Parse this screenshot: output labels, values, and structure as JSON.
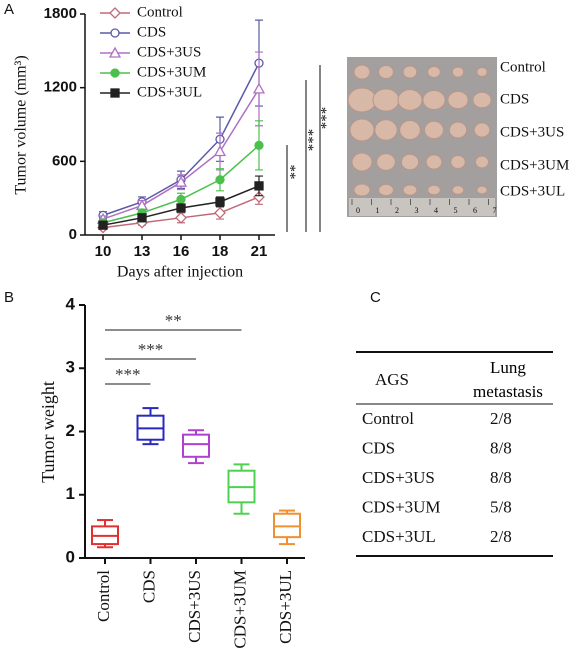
{
  "panels": [
    "A",
    "B",
    "C"
  ],
  "chart_data": [
    {
      "type": "line",
      "y_label": "Tumor volume (mm³)",
      "x_label": "Days after injection",
      "categories": [
        "10",
        "13",
        "16",
        "18",
        "21"
      ],
      "ylim": [
        0,
        1800
      ],
      "yticks": [
        0,
        600,
        1200,
        1800
      ],
      "legend": "upper left",
      "series": [
        {
          "name": "Control",
          "color": "#c06a78",
          "marker": "diamond-open",
          "values": [
            60,
            100,
            140,
            180,
            310
          ],
          "errors": [
            15,
            20,
            40,
            50,
            60
          ]
        },
        {
          "name": "CDS",
          "color": "#5a5aa8",
          "marker": "circle-open",
          "values": [
            160,
            270,
            450,
            780,
            1400
          ],
          "errors": [
            30,
            40,
            70,
            180,
            350
          ]
        },
        {
          "name": "CDS+3US",
          "color": "#b070c4",
          "marker": "triangle-open",
          "values": [
            130,
            240,
            430,
            680,
            1190
          ],
          "errors": [
            25,
            40,
            60,
            150,
            300
          ]
        },
        {
          "name": "CDS+3UM",
          "color": "#4cc04c",
          "marker": "circle",
          "values": [
            100,
            180,
            290,
            450,
            730
          ],
          "errors": [
            20,
            30,
            50,
            90,
            200
          ]
        },
        {
          "name": "CDS+3UL",
          "color": "#222222",
          "marker": "square",
          "values": [
            80,
            140,
            220,
            270,
            400
          ],
          "errors": [
            15,
            20,
            30,
            40,
            80
          ]
        }
      ],
      "annotations": [
        "**",
        "***",
        "***"
      ]
    },
    {
      "type": "box",
      "y_label": "Tumor weight",
      "categories": [
        "Control",
        "CDS",
        "CDS+3US",
        "CDS+3UM",
        "CDS+3UL"
      ],
      "ylim": [
        0,
        4
      ],
      "yticks": [
        0,
        1,
        2,
        3,
        4
      ],
      "colors": [
        "#e03030",
        "#2828c0",
        "#b040d0",
        "#50d050",
        "#f09030"
      ],
      "boxes": [
        {
          "min": 0.17,
          "q1": 0.22,
          "median": 0.35,
          "q3": 0.5,
          "max": 0.6
        },
        {
          "min": 1.8,
          "q1": 1.87,
          "median": 2.05,
          "q3": 2.25,
          "max": 2.37
        },
        {
          "min": 1.5,
          "q1": 1.6,
          "median": 1.8,
          "q3": 1.95,
          "max": 2.02
        },
        {
          "min": 0.7,
          "q1": 0.88,
          "median": 1.12,
          "q3": 1.38,
          "max": 1.48
        },
        {
          "min": 0.22,
          "q1": 0.33,
          "median": 0.5,
          "q3": 0.7,
          "max": 0.75
        }
      ],
      "annotations": [
        "**",
        "***",
        "***"
      ]
    }
  ],
  "photo": {
    "labels": [
      "Control",
      "CDS",
      "CDS+3US",
      "CDS+3UM",
      "CDS+3UL"
    ],
    "ruler": [
      0,
      1,
      2,
      3,
      4,
      5,
      6,
      7
    ]
  },
  "table": {
    "header": [
      "AGS",
      "Lung metastasis"
    ],
    "rows": [
      [
        "Control",
        "2/8"
      ],
      [
        "CDS",
        "8/8"
      ],
      [
        "CDS+3US",
        "8/8"
      ],
      [
        "CDS+3UM",
        "5/8"
      ],
      [
        "CDS+3UL",
        "2/8"
      ]
    ]
  }
}
